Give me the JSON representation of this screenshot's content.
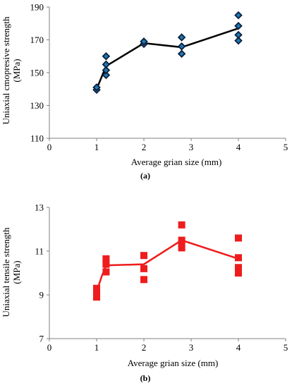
{
  "chart_data": [
    {
      "type": "scatter",
      "panel_label": "(a)",
      "xlabel": "Average grian size (mm)",
      "ylabel_lines": [
        "Uniaxial cmopresive strength",
        "(MPa)"
      ],
      "xlim": [
        0,
        5
      ],
      "ylim": [
        110,
        190
      ],
      "xticks": [
        0,
        1,
        2,
        3,
        4,
        5
      ],
      "yticks": [
        110,
        130,
        150,
        170,
        190
      ],
      "marker": "diamond",
      "marker_color": "#1f77b4",
      "line_color": "#000000",
      "points": [
        [
          1.0,
          139.5
        ],
        [
          1.0,
          141.0
        ],
        [
          1.2,
          148.5
        ],
        [
          1.2,
          151.5
        ],
        [
          1.2,
          155.0
        ],
        [
          1.2,
          160.0
        ],
        [
          2.0,
          167.5
        ],
        [
          2.0,
          169.0
        ],
        [
          2.8,
          161.5
        ],
        [
          2.8,
          166.0
        ],
        [
          2.8,
          171.5
        ],
        [
          4.0,
          169.5
        ],
        [
          4.0,
          173.0
        ],
        [
          4.0,
          178.5
        ],
        [
          4.0,
          185.0
        ]
      ],
      "mean_line": [
        [
          1.0,
          140.0
        ],
        [
          1.2,
          154.0
        ],
        [
          2.0,
          168.0
        ],
        [
          2.8,
          165.5
        ],
        [
          4.0,
          177.0
        ]
      ]
    },
    {
      "type": "scatter",
      "panel_label": "(b)",
      "xlabel": "Average grian size (mm)",
      "ylabel_lines": [
        "Uniaxial tensile strength",
        "(MPa)"
      ],
      "xlim": [
        0,
        5
      ],
      "ylim": [
        7,
        13
      ],
      "xticks": [
        0,
        1,
        2,
        3,
        4,
        5
      ],
      "yticks": [
        7,
        9,
        11,
        13
      ],
      "marker": "square",
      "marker_color": "#ee1c1c",
      "line_color": "#ee1c1c",
      "points": [
        [
          1.0,
          8.9
        ],
        [
          1.0,
          9.1
        ],
        [
          1.0,
          9.3
        ],
        [
          1.2,
          10.05
        ],
        [
          1.2,
          10.4
        ],
        [
          1.2,
          10.65
        ],
        [
          2.0,
          9.7
        ],
        [
          2.0,
          10.2
        ],
        [
          2.0,
          10.8
        ],
        [
          2.8,
          11.15
        ],
        [
          2.8,
          11.35
        ],
        [
          2.8,
          11.5
        ],
        [
          2.8,
          12.2
        ],
        [
          4.0,
          10.0
        ],
        [
          4.0,
          10.25
        ],
        [
          4.0,
          10.7
        ],
        [
          4.0,
          11.6
        ]
      ],
      "mean_line": [
        [
          1.0,
          9.15
        ],
        [
          1.1,
          9.8
        ],
        [
          1.2,
          10.35
        ],
        [
          2.0,
          10.4
        ],
        [
          2.8,
          11.5
        ],
        [
          4.0,
          10.65
        ]
      ]
    }
  ]
}
